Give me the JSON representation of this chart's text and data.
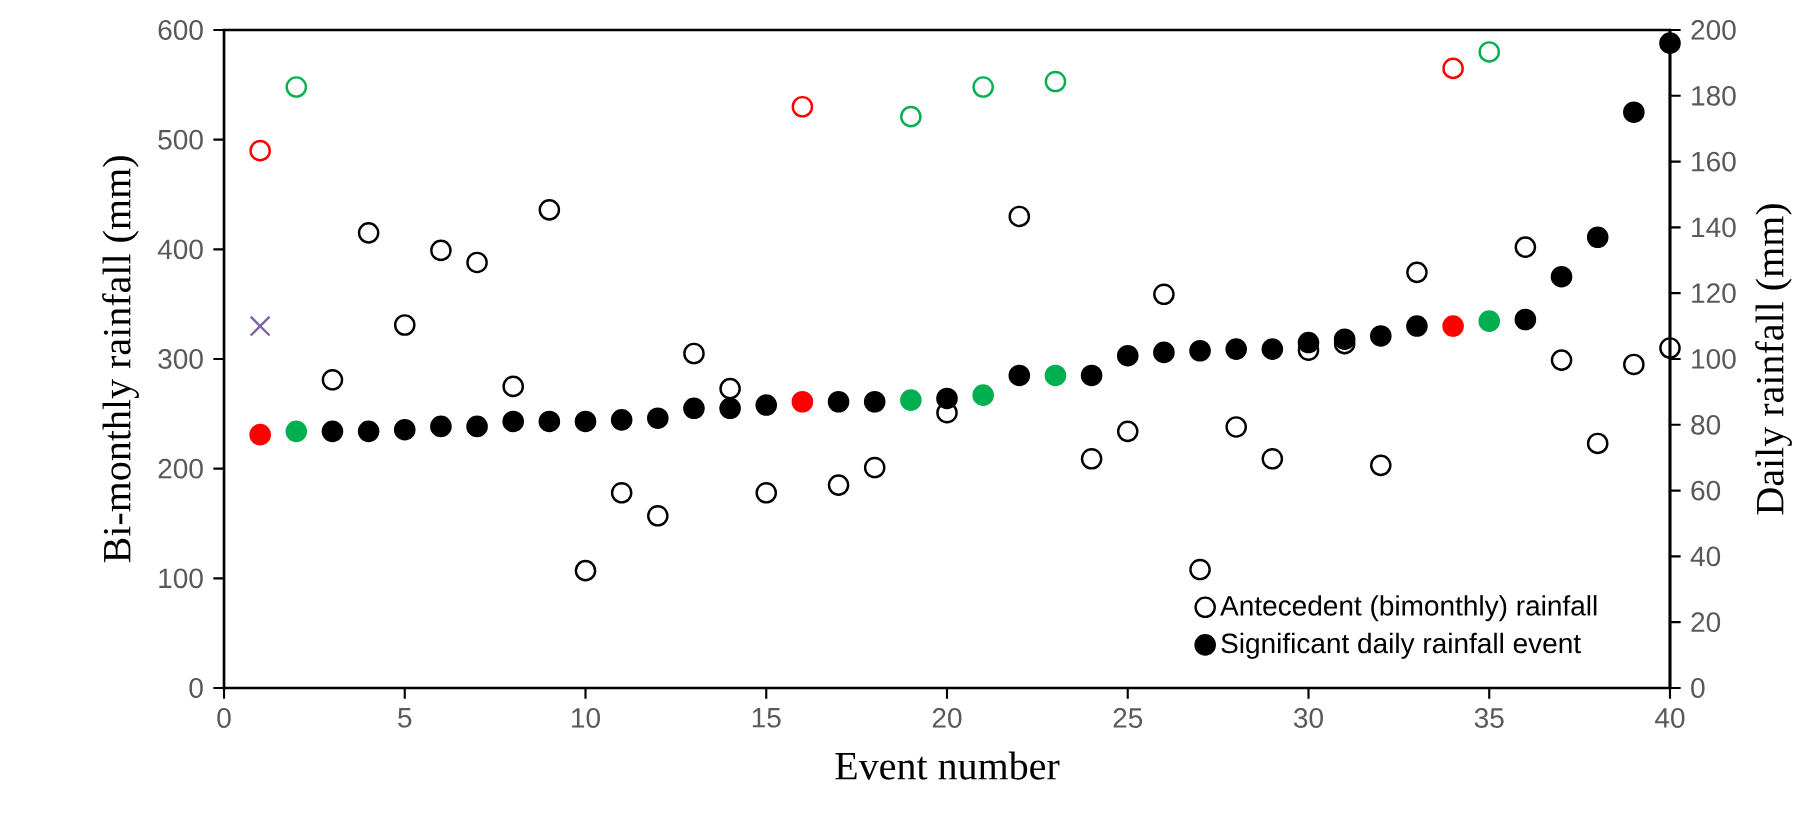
{
  "chart_data": {
    "type": "scatter",
    "xlabel": "Event number",
    "ylabel": "Bi-monthly rainfall (mm)",
    "y2label": "Daily rainfall (mm)",
    "xlim": [
      0,
      40
    ],
    "xticks": [
      0,
      5,
      10,
      15,
      20,
      25,
      30,
      35,
      40
    ],
    "ylim": [
      0,
      600
    ],
    "yticks": [
      0,
      100,
      200,
      300,
      400,
      500,
      600
    ],
    "y2lim": [
      0,
      200
    ],
    "y2ticks": [
      0,
      20,
      40,
      60,
      80,
      100,
      120,
      140,
      160,
      180,
      200
    ],
    "grid": false,
    "legend": "bottom right",
    "series": [
      {
        "name": "Antecedent (bimonthly) rainfall",
        "axis": "y",
        "marker": "circle",
        "color": "#000000",
        "x": [
          1,
          2,
          3,
          4,
          5,
          6,
          7,
          8,
          9,
          10,
          11,
          12,
          13,
          14,
          15,
          16,
          17,
          18,
          19,
          20,
          21,
          22,
          23,
          24,
          25,
          26,
          27,
          28,
          29,
          30,
          31,
          32,
          33,
          34,
          35,
          36,
          37,
          38,
          39,
          40
        ],
        "values": [
          490,
          548,
          281,
          415,
          331,
          399,
          388,
          275,
          436,
          107,
          178,
          157,
          305,
          273,
          178,
          530,
          185,
          201,
          521,
          251,
          548,
          430,
          553,
          209,
          234,
          359,
          108,
          238,
          209,
          308,
          314,
          203,
          379,
          565,
          580,
          402,
          299,
          223,
          295,
          310
        ],
        "colors": [
          "#ff0000",
          "#00b050",
          "#000000",
          "#000000",
          "#000000",
          "#000000",
          "#000000",
          "#000000",
          "#000000",
          "#000000",
          "#000000",
          "#000000",
          "#000000",
          "#000000",
          "#000000",
          "#ff0000",
          "#000000",
          "#000000",
          "#00b050",
          "#000000",
          "#00b050",
          "#000000",
          "#00b050",
          "#000000",
          "#000000",
          "#000000",
          "#000000",
          "#000000",
          "#000000",
          "#000000",
          "#000000",
          "#000000",
          "#000000",
          "#ff0000",
          "#00b050",
          "#000000",
          "#000000",
          "#000000",
          "#000000",
          "#000000"
        ]
      },
      {
        "name": "Significant daily rainfall event",
        "axis": "y2",
        "marker": "circle",
        "color": "#000000",
        "x": [
          1,
          2,
          3,
          4,
          5,
          6,
          7,
          8,
          9,
          10,
          11,
          12,
          13,
          14,
          15,
          16,
          17,
          18,
          19,
          20,
          21,
          22,
          23,
          24,
          25,
          26,
          27,
          28,
          29,
          30,
          31,
          32,
          33,
          34,
          35,
          36,
          37,
          38,
          39,
          40
        ],
        "values": [
          77,
          78,
          78,
          78,
          78.5,
          79.5,
          79.5,
          81,
          81,
          81,
          81.5,
          82,
          85,
          85,
          86,
          87,
          87,
          87,
          87.5,
          88,
          89,
          95,
          95,
          95,
          101,
          102,
          102.5,
          103,
          103,
          105,
          106,
          107,
          110,
          110,
          111.5,
          112,
          125,
          137,
          175,
          196
        ],
        "colors": [
          "#ff0000",
          "#00b050",
          "#000000",
          "#000000",
          "#000000",
          "#000000",
          "#000000",
          "#000000",
          "#000000",
          "#000000",
          "#000000",
          "#000000",
          "#000000",
          "#000000",
          "#000000",
          "#ff0000",
          "#000000",
          "#000000",
          "#00b050",
          "#000000",
          "#00b050",
          "#000000",
          "#00b050",
          "#000000",
          "#000000",
          "#000000",
          "#000000",
          "#000000",
          "#000000",
          "#000000",
          "#000000",
          "#000000",
          "#000000",
          "#ff0000",
          "#00b050",
          "#000000",
          "#000000",
          "#000000",
          "#000000",
          "#000000"
        ]
      },
      {
        "axis": "y",
        "marker": "cross",
        "color": "#8064a2",
        "x": [
          1
        ],
        "values": [
          330
        ]
      }
    ]
  }
}
